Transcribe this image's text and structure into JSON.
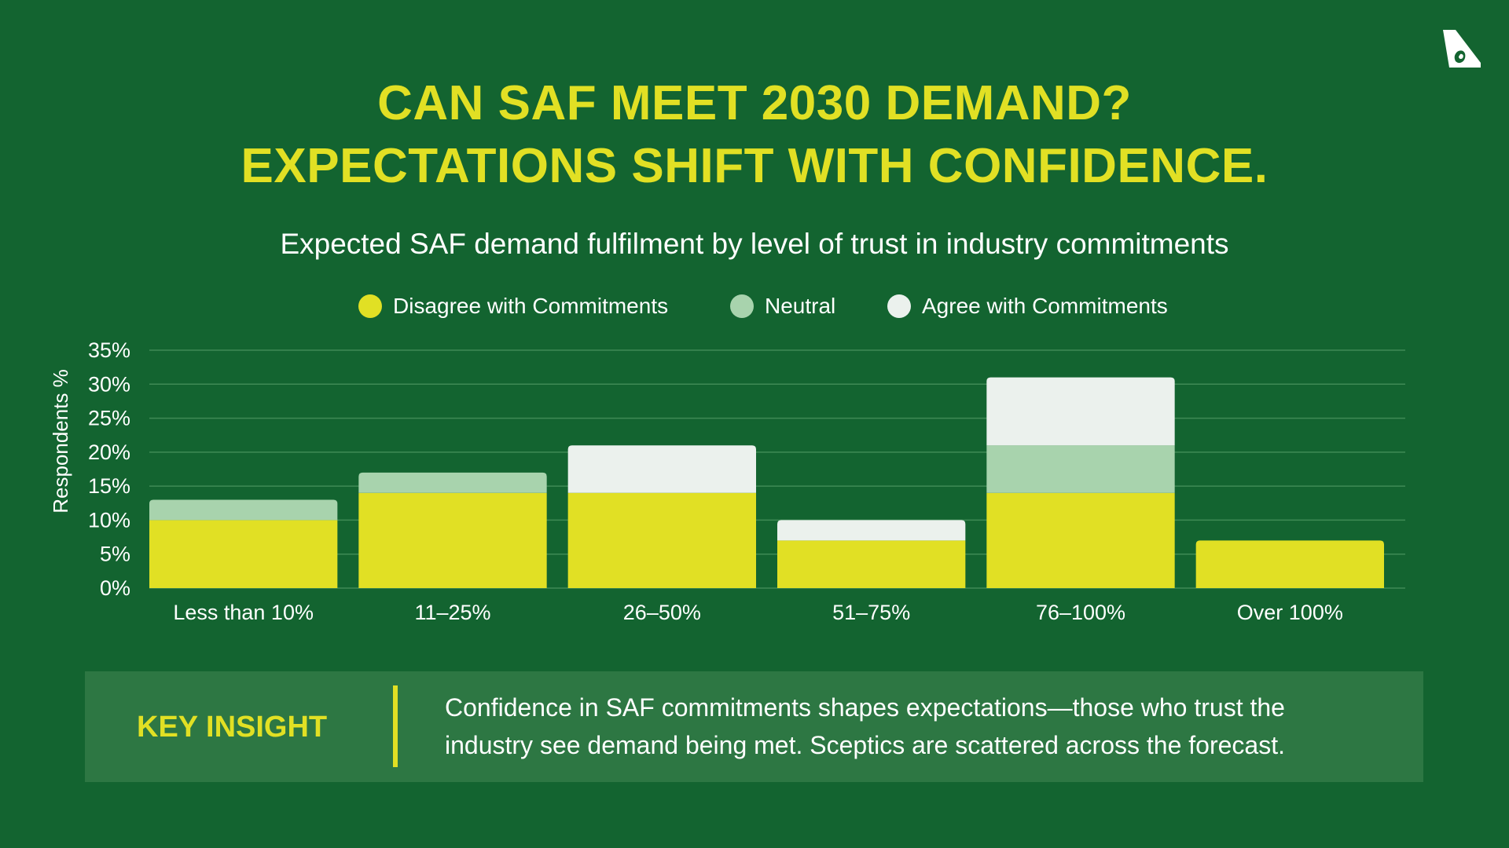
{
  "title_lines": [
    "CAN SAF MEET 2030 DEMAND?",
    "EXPECTATIONS SHIFT WITH CONFIDENCE."
  ],
  "subtitle": "Expected SAF demand fulfilment by level of trust in industry commitments",
  "logo_icon": "aircraft-tail-logo-icon",
  "colors": {
    "background": "#136430",
    "accent": "#e1e024",
    "disagree": "#e1e024",
    "neutral": "#a8d3ad",
    "agree": "#ebf1ed",
    "insight_box": "#2d7743"
  },
  "chart_data": {
    "type": "bar",
    "stacked": true,
    "categories": [
      "Less than 10%",
      "11–25%",
      "26–50%",
      "51–75%",
      "76–100%",
      "Over 100%"
    ],
    "series": [
      {
        "name": "Disagree with Commitments",
        "values": [
          10,
          14,
          14,
          7,
          14,
          7
        ]
      },
      {
        "name": "Neutral",
        "values": [
          3,
          3,
          0,
          0,
          7,
          0
        ]
      },
      {
        "name": "Agree with Commitments",
        "values": [
          0,
          0,
          7,
          3,
          10,
          0
        ]
      }
    ],
    "ylabel": "Respondents %",
    "ylim": [
      0,
      35
    ],
    "yticks": [
      0,
      5,
      10,
      15,
      20,
      25,
      30,
      35
    ],
    "ytick_labels": [
      "0%",
      "5%",
      "10%",
      "15%",
      "20%",
      "25%",
      "30%",
      "35%"
    ],
    "grid": true,
    "legend_position": "top-center"
  },
  "insight": {
    "label": "KEY INSIGHT",
    "lines": [
      "Confidence in SAF commitments shapes expectations—those who trust the",
      "industry see demand being met. Sceptics are scattered across the forecast."
    ]
  }
}
